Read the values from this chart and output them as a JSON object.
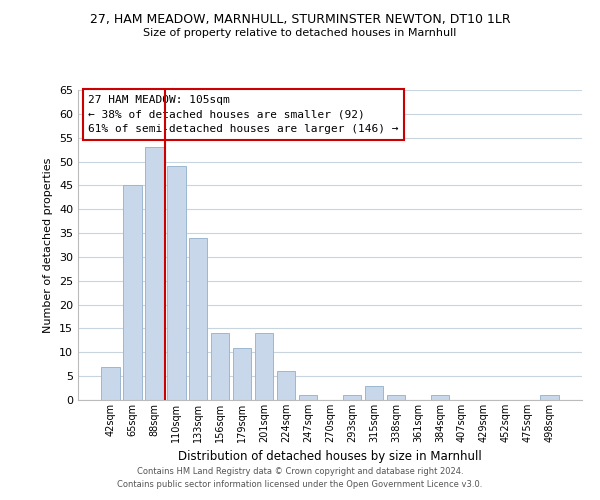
{
  "title": "27, HAM MEADOW, MARNHULL, STURMINSTER NEWTON, DT10 1LR",
  "subtitle": "Size of property relative to detached houses in Marnhull",
  "xlabel": "Distribution of detached houses by size in Marnhull",
  "ylabel": "Number of detached properties",
  "bar_color": "#c8d8ea",
  "bar_edge_color": "#9ab8d0",
  "categories": [
    "42sqm",
    "65sqm",
    "88sqm",
    "110sqm",
    "133sqm",
    "156sqm",
    "179sqm",
    "201sqm",
    "224sqm",
    "247sqm",
    "270sqm",
    "293sqm",
    "315sqm",
    "338sqm",
    "361sqm",
    "384sqm",
    "407sqm",
    "429sqm",
    "452sqm",
    "475sqm",
    "498sqm"
  ],
  "values": [
    7,
    45,
    53,
    49,
    34,
    14,
    11,
    14,
    6,
    1,
    0,
    1,
    3,
    1,
    0,
    1,
    0,
    0,
    0,
    0,
    1
  ],
  "ylim": [
    0,
    65
  ],
  "yticks": [
    0,
    5,
    10,
    15,
    20,
    25,
    30,
    35,
    40,
    45,
    50,
    55,
    60,
    65
  ],
  "vline_color": "#cc0000",
  "annotation_text": "27 HAM MEADOW: 105sqm\n← 38% of detached houses are smaller (92)\n61% of semi-detached houses are larger (146) →",
  "annotation_box_color": "#ffffff",
  "annotation_box_edge": "#cc0000",
  "footer_line1": "Contains HM Land Registry data © Crown copyright and database right 2024.",
  "footer_line2": "Contains public sector information licensed under the Open Government Licence v3.0.",
  "background_color": "#ffffff",
  "grid_color": "#c8d4de"
}
